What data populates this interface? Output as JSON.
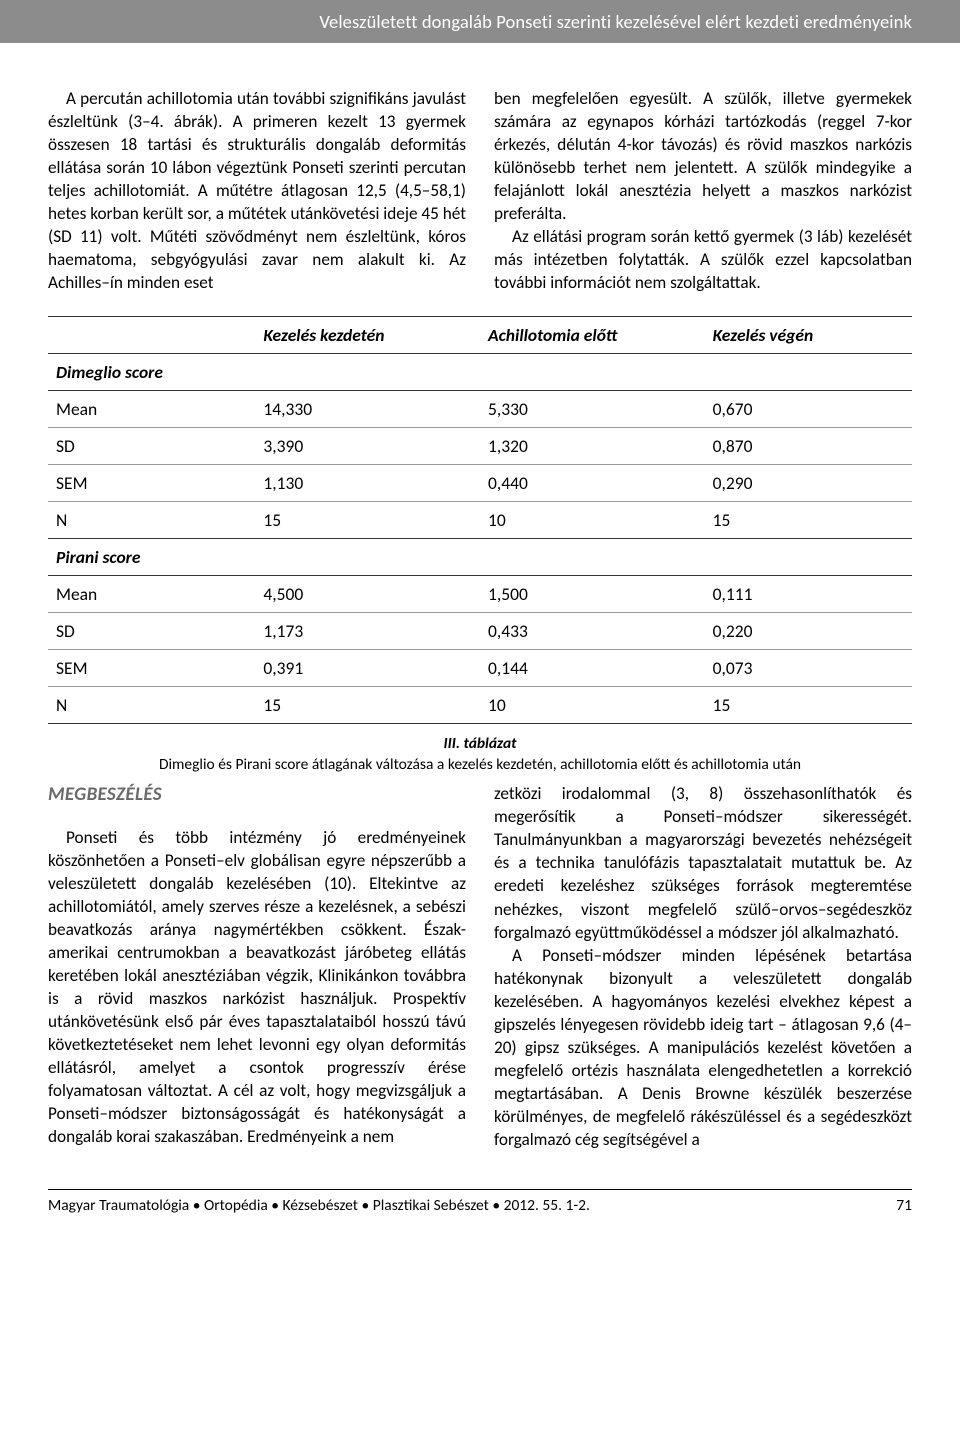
{
  "header": {
    "title": "Veleszületett dongaláb Ponseti szerinti kezelésével elért kezdeti eredményeink"
  },
  "body": {
    "p1": "A percután achillotomia után további szignifikáns javulást észleltünk (3–4. ábrák). A primeren kezelt 13 gyermek összesen 18 tartási és strukturális dongaláb deformitás ellátása során 10 lábon végeztünk Ponseti szerinti percutan teljes achillotomiát. A műtétre átlagosan 12,5 (4,5–58,1) hetes korban került sor, a műtétek utánkövetési ideje 45 hét (SD 11) volt. Műtéti szövődményt nem észleltünk, kóros haematoma, sebgyógyulási zavar nem alakult ki. Az Achilles–ín minden eset",
    "p2a": "ben megfelelően egyesült. A szülők, illetve gyermekek számára az egynapos kórházi tartózkodás (reggel 7-kor érkezés, délután 4-kor távozás) és rövid maszkos narkózis különösebb terhet nem jelentett. A szülők mindegyike a felajánlott lokál anesztézia helyett a maszkos narkózist preferálta.",
    "p2b": "Az ellátási program során kettő gyermek (3 láb) kezelését más intézetben folytatták. A szülők ezzel kapcsolatban további információt nem szolgáltattak."
  },
  "table": {
    "headers": [
      "",
      "Kezelés kezdetén",
      "Achillotomia előtt",
      "Kezelés végén"
    ],
    "section1": "Dimeglio score",
    "section2": "Pirani score",
    "rows1": [
      [
        "Mean",
        "14,330",
        "5,330",
        "0,670"
      ],
      [
        "SD",
        "3,390",
        "1,320",
        "0,870"
      ],
      [
        "SEM",
        "1,130",
        "0,440",
        "0,290"
      ],
      [
        "N",
        "15",
        "10",
        "15"
      ]
    ],
    "rows2": [
      [
        "Mean",
        "4,500",
        "1,500",
        "0,111"
      ],
      [
        "SD",
        "1,173",
        "0,433",
        "0,220"
      ],
      [
        "SEM",
        "0,391",
        "0,144",
        "0,073"
      ],
      [
        "N",
        "15",
        "10",
        "15"
      ]
    ],
    "caption_title": "III. táblázat",
    "caption_text": "Dimeglio és Pirani score átlagának változása a kezelés kezdetén, achillotomia előtt és achillotomia után"
  },
  "discussion": {
    "heading": "MEGBESZÉLÉS",
    "p1": "Ponseti és több intézmény jó eredményeinek köszönhetően a Ponseti–elv globálisan egyre népszerűbb a veleszületett dongaláb kezelésében (10). Eltekintve az achillotomiától, amely szerves része a kezelésnek, a sebészi beavatkozás aránya nagymértékben csökkent. Észak-amerikai centrumokban a beavatkozást járóbeteg ellátás keretében lokál anesztéziában végzik, Klinikánkon továbbra is a rövid maszkos narkózist használjuk. Prospektív utánkövetésünk első pár éves tapasztalataiból hosszú távú következtetéseket nem lehet levonni egy olyan deformitás ellátásról, amelyet a csontok progresszív érése folyamatosan változtat. A cél az volt, hogy megvizsgáljuk a Ponseti–módszer biztonságosságát és hatékonyságát a dongaláb korai szakaszában. Eredményeink a nem",
    "p2a": "zetközi irodalommal (3, 8) összehasonlíthatók és megerősítik a Ponseti–módszer sikerességét. Tanulmányunkban a magyarországi bevezetés nehézségeit és a technika tanulófázis tapasztalatait mutattuk be. Az eredeti kezeléshez szükséges források megteremtése nehézkes, viszont megfelelő szülő–orvos–segédeszköz forgalmazó együttműködéssel a módszer jól alkalmazható.",
    "p2b": "A Ponseti–módszer minden lépésének betartása hatékonynak bizonyult a veleszületett dongaláb kezelésében. A hagyományos kezelési elvekhez képest a gipszelés lényegesen rövidebb ideig tart – átlagosan 9,6 (4–20) gipsz szükséges. A manipulációs kezelést követően a megfelelő ortézis használata elengedhetetlen a korrekció megtartásában. A Denis Browne készülék beszerzése körülményes, de megfelelő rákészüléssel és a segédeszközt forgalmazó cég segítségével a"
  },
  "footer": {
    "journal": "Magyar Traumatológia • Ortopédia • Kézsebészet • Plasztikai Sebészet • 2012. 55. 1-2.",
    "page": "71"
  }
}
